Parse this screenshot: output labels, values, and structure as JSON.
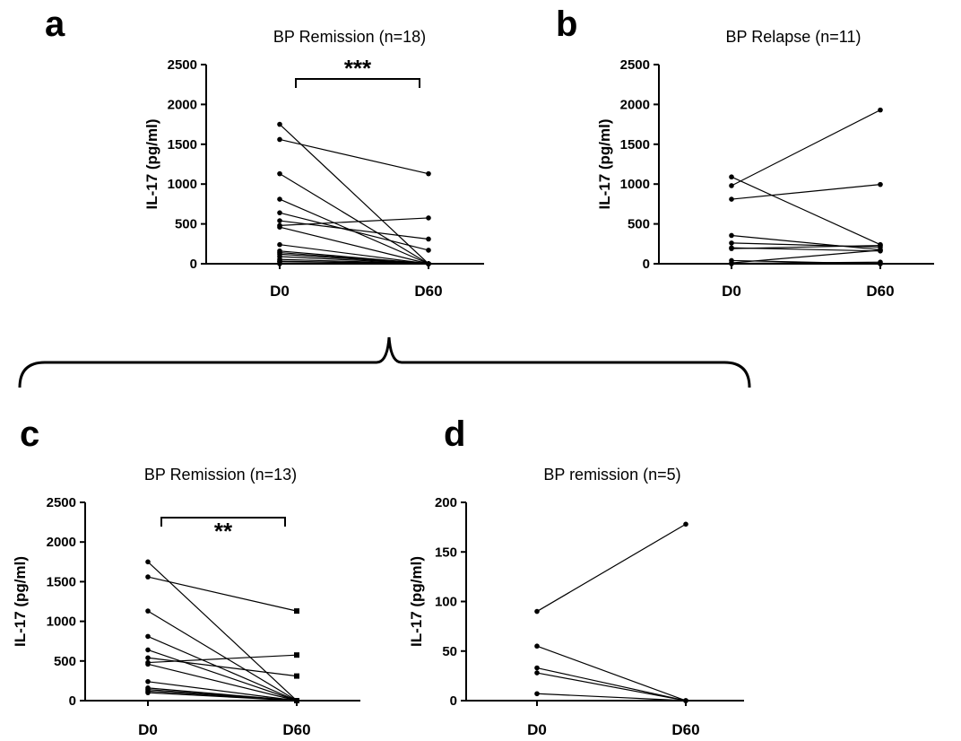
{
  "chart_data": [
    {
      "panel": "a",
      "type": "line",
      "title": "BP Remission (n=18)",
      "ylabel": "IL-17 (pg/ml)",
      "categories": [
        "D0",
        "D60"
      ],
      "ylim": [
        0,
        2500
      ],
      "yticks": [
        "0",
        "500",
        "1000",
        "1500",
        "2000",
        "2500"
      ],
      "marker": "circle",
      "significance": "***",
      "series": [
        {
          "values": [
            1750,
            0
          ]
        },
        {
          "values": [
            1560,
            1130
          ]
        },
        {
          "values": [
            1130,
            0
          ]
        },
        {
          "values": [
            810,
            0
          ]
        },
        {
          "values": [
            640,
            170
          ]
        },
        {
          "values": [
            540,
            310
          ]
        },
        {
          "values": [
            480,
            575
          ]
        },
        {
          "values": [
            460,
            0
          ]
        },
        {
          "values": [
            240,
            0
          ]
        },
        {
          "values": [
            160,
            0
          ]
        },
        {
          "values": [
            140,
            0
          ]
        },
        {
          "values": [
            120,
            0
          ]
        },
        {
          "values": [
            90,
            0
          ]
        },
        {
          "values": [
            55,
            0
          ]
        },
        {
          "values": [
            33,
            0
          ]
        },
        {
          "values": [
            28,
            0
          ]
        },
        {
          "values": [
            7,
            0
          ]
        },
        {
          "values": [
            0,
            0
          ]
        }
      ]
    },
    {
      "panel": "b",
      "type": "line",
      "title": "BP Relapse (n=11)",
      "ylabel": "IL-17 (pg/ml)",
      "categories": [
        "D0",
        "D60"
      ],
      "ylim": [
        0,
        2500
      ],
      "yticks": [
        "0",
        "500",
        "1000",
        "1500",
        "2000",
        "2500"
      ],
      "marker": "circle",
      "series": [
        {
          "values": [
            980,
            1930
          ]
        },
        {
          "values": [
            1090,
            240
          ]
        },
        {
          "values": [
            810,
            995
          ]
        },
        {
          "values": [
            355,
            175
          ]
        },
        {
          "values": [
            260,
            210
          ]
        },
        {
          "values": [
            200,
            160
          ]
        },
        {
          "values": [
            190,
            230
          ]
        },
        {
          "values": [
            40,
            0
          ]
        },
        {
          "values": [
            10,
            170
          ]
        },
        {
          "values": [
            5,
            20
          ]
        },
        {
          "values": [
            0,
            0
          ]
        }
      ]
    },
    {
      "panel": "c",
      "type": "line",
      "title": "BP Remission (n=13)",
      "ylabel": "IL-17 (pg/ml)",
      "categories": [
        "D0",
        "D60"
      ],
      "ylim": [
        0,
        2500
      ],
      "yticks": [
        "0",
        "500",
        "1000",
        "1500",
        "2000",
        "2500"
      ],
      "marker": "square-at-D60",
      "significance": "**",
      "series": [
        {
          "values": [
            1750,
            0
          ]
        },
        {
          "values": [
            1560,
            1130
          ]
        },
        {
          "values": [
            1130,
            0
          ]
        },
        {
          "values": [
            810,
            0
          ]
        },
        {
          "values": [
            640,
            0
          ]
        },
        {
          "values": [
            540,
            310
          ]
        },
        {
          "values": [
            480,
            575
          ]
        },
        {
          "values": [
            460,
            0
          ]
        },
        {
          "values": [
            240,
            0
          ]
        },
        {
          "values": [
            160,
            0
          ]
        },
        {
          "values": [
            140,
            0
          ]
        },
        {
          "values": [
            120,
            0
          ]
        },
        {
          "values": [
            100,
            0
          ]
        }
      ]
    },
    {
      "panel": "d",
      "type": "line",
      "title": "BP remission (n=5)",
      "ylabel": "IL-17 (pg/ml)",
      "categories": [
        "D0",
        "D60"
      ],
      "ylim": [
        0,
        200
      ],
      "yticks": [
        "0",
        "50",
        "100",
        "150",
        "200"
      ],
      "marker": "circle",
      "series": [
        {
          "values": [
            90,
            178
          ]
        },
        {
          "values": [
            55,
            0
          ]
        },
        {
          "values": [
            33,
            0
          ]
        },
        {
          "values": [
            28,
            0
          ]
        },
        {
          "values": [
            7,
            0
          ]
        }
      ]
    }
  ]
}
